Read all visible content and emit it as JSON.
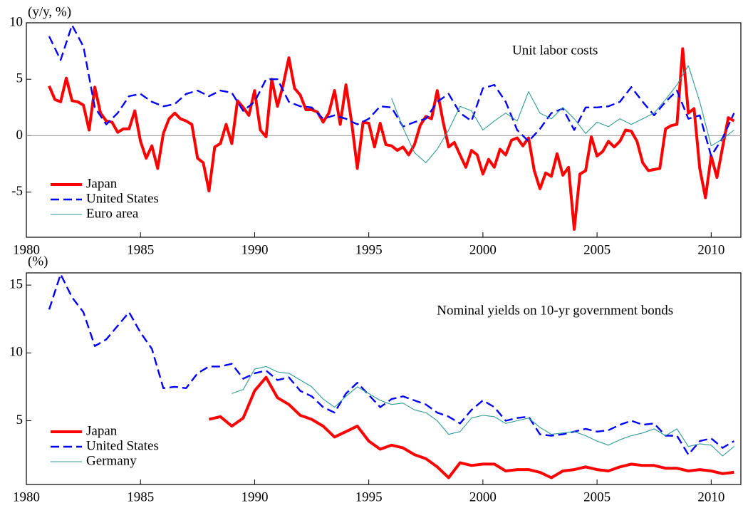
{
  "chart_data": [
    {
      "type": "line",
      "title": "Unit labor costs",
      "y_unit": "(y/y, %)",
      "xlim": [
        1980,
        2011.3
      ],
      "xticks": [
        1980,
        1985,
        1990,
        1995,
        2000,
        2005,
        2010
      ],
      "ylim": [
        -9,
        10
      ],
      "yticks": [
        -5,
        0,
        5,
        10
      ],
      "zero_line": true,
      "legend": "lower left",
      "series": [
        {
          "name": "Japan",
          "color": "#ff0000",
          "dashed": false,
          "x": [
            1981,
            1981.25,
            1981.5,
            1981.75,
            1982,
            1982.25,
            1982.5,
            1982.75,
            1983,
            1983.25,
            1983.5,
            1983.75,
            1984,
            1984.25,
            1984.5,
            1984.75,
            1985,
            1985.25,
            1985.5,
            1985.75,
            1986,
            1986.25,
            1986.5,
            1986.75,
            1987,
            1987.25,
            1987.5,
            1987.75,
            1988,
            1988.25,
            1988.5,
            1988.75,
            1989,
            1989.25,
            1989.5,
            1989.75,
            1990,
            1990.25,
            1990.5,
            1990.75,
            1991,
            1991.25,
            1991.5,
            1991.75,
            1992,
            1992.25,
            1992.5,
            1992.75,
            1993,
            1993.25,
            1993.5,
            1993.75,
            1994,
            1994.25,
            1994.5,
            1994.75,
            1995,
            1995.25,
            1995.5,
            1995.75,
            1996,
            1996.25,
            1996.5,
            1996.75,
            1997,
            1997.25,
            1997.5,
            1997.75,
            1998,
            1998.25,
            1998.5,
            1998.75,
            1999,
            1999.25,
            1999.5,
            1999.75,
            2000,
            2000.25,
            2000.5,
            2000.75,
            2001,
            2001.25,
            2001.5,
            2001.75,
            2002,
            2002.25,
            2002.5,
            2002.75,
            2003,
            2003.25,
            2003.5,
            2003.75,
            2004,
            2004.25,
            2004.5,
            2004.75,
            2005,
            2005.25,
            2005.5,
            2005.75,
            2006,
            2006.25,
            2006.5,
            2006.75,
            2007,
            2007.25,
            2007.5,
            2007.75,
            2008,
            2008.25,
            2008.5,
            2008.75,
            2009,
            2009.25,
            2009.5,
            2009.75,
            2010,
            2010.25,
            2010.5,
            2010.75,
            2011
          ],
          "values": [
            4.4,
            3.2,
            3.0,
            5.1,
            3.1,
            3.0,
            2.7,
            0.5,
            4.3,
            2.0,
            1.3,
            1.2,
            0.3,
            0.6,
            0.6,
            2.2,
            -0.5,
            -2.0,
            -0.9,
            -2.9,
            0.2,
            1.5,
            2.0,
            1.5,
            1.3,
            1.0,
            -2.0,
            -2.4,
            -4.9,
            -1.0,
            -0.7,
            1.0,
            -0.7,
            3.1,
            2.5,
            1.8,
            4.0,
            0.5,
            -0.1,
            5.0,
            2.6,
            4.5,
            6.9,
            4.2,
            3.6,
            2.3,
            2.3,
            2.1,
            1.2,
            2.0,
            4.0,
            1.0,
            4.5,
            1.2,
            -2.9,
            1.2,
            1.1,
            -1.0,
            1.1,
            -0.8,
            -0.9,
            -1.3,
            -1.0,
            -1.7,
            -0.8,
            0.9,
            1.7,
            1.5,
            4.0,
            1.3,
            -1.0,
            -0.6,
            -1.7,
            -2.8,
            -1.3,
            -1.7,
            -3.4,
            -2.1,
            -2.8,
            -1.2,
            -1.7,
            -0.4,
            -0.2,
            -0.9,
            -0.2,
            -3.1,
            -4.7,
            -3.3,
            -3.6,
            -1.6,
            -3.5,
            -2.8,
            -8.3,
            -3.4,
            -3.1,
            -0.1,
            -1.8,
            -1.4,
            -0.5,
            -1.0,
            -0.5,
            0.5,
            0.4,
            -0.5,
            -2.4,
            -3.1,
            -3.0,
            -2.9,
            0.6,
            0.9,
            1.0,
            7.7,
            2.0,
            2.4,
            -2.9,
            -5.5,
            -1.8,
            -3.7,
            -1.0,
            1.6,
            1.3
          ]
        },
        {
          "name": "United States",
          "color": "#0000ff",
          "dashed": true,
          "x": [
            1981,
            1981.5,
            1982,
            1982.5,
            1983,
            1983.5,
            1984,
            1984.5,
            1985,
            1985.5,
            1986,
            1986.5,
            1987,
            1987.5,
            1988,
            1988.5,
            1989,
            1989.5,
            1990,
            1990.5,
            1991,
            1991.5,
            1992,
            1992.5,
            1993,
            1993.5,
            1994,
            1994.5,
            1995,
            1995.5,
            1996,
            1996.5,
            1997,
            1997.5,
            1998,
            1998.5,
            1999,
            1999.5,
            2000,
            2000.5,
            2001,
            2001.5,
            2002,
            2002.5,
            2003,
            2003.5,
            2004,
            2004.5,
            2005,
            2005.5,
            2006,
            2006.5,
            2007,
            2007.5,
            2008,
            2008.5,
            2009,
            2009.5,
            2010,
            2010.5,
            2011
          ],
          "values": [
            8.8,
            6.7,
            9.8,
            7.9,
            2.5,
            1.0,
            2.0,
            3.5,
            3.7,
            3.0,
            2.6,
            2.8,
            3.7,
            4.0,
            3.5,
            4.0,
            3.8,
            2.2,
            3.0,
            5.0,
            5.0,
            3.0,
            2.6,
            2.5,
            1.5,
            1.8,
            1.5,
            1.0,
            1.5,
            2.6,
            2.5,
            0.8,
            1.2,
            1.5,
            3.0,
            3.7,
            2.0,
            1.3,
            4.2,
            4.5,
            3.0,
            0.5,
            -0.5,
            0.6,
            2.0,
            2.4,
            0.5,
            2.5,
            2.5,
            2.6,
            3.0,
            4.3,
            3.0,
            1.8,
            3.0,
            4.0,
            1.5,
            1.8,
            -1.8,
            -0.2,
            2.0
          ]
        },
        {
          "name": "Euro area",
          "color": "#2f9a96",
          "dashed": false,
          "x": [
            1996,
            1996.5,
            1997,
            1997.5,
            1998,
            1998.5,
            1999,
            1999.5,
            2000,
            2000.5,
            2001,
            2001.5,
            2002,
            2002.5,
            2003,
            2003.5,
            2004,
            2004.5,
            2005,
            2005.5,
            2006,
            2006.5,
            2007,
            2007.5,
            2008,
            2008.5,
            2009,
            2009.5,
            2010,
            2010.5,
            2011
          ],
          "values": [
            3.3,
            0.7,
            -1.5,
            -2.4,
            -1.2,
            0.5,
            2.6,
            2.2,
            0.5,
            1.3,
            2.0,
            1.3,
            3.9,
            2.0,
            1.5,
            2.5,
            1.5,
            0.2,
            1.2,
            0.8,
            1.5,
            1.0,
            1.5,
            2.0,
            3.2,
            4.5,
            6.2,
            3.0,
            -0.9,
            -0.3,
            0.5
          ]
        }
      ]
    },
    {
      "type": "line",
      "title": "Nominal yields on 10-yr government bonds",
      "y_unit": "(%)",
      "xlim": [
        1980,
        2011.3
      ],
      "xticks": [
        1980,
        1985,
        1990,
        1995,
        2000,
        2005,
        2010
      ],
      "ylim": [
        0.3,
        15.9
      ],
      "yticks": [
        5,
        10,
        15
      ],
      "zero_line": false,
      "legend": "lower left",
      "series": [
        {
          "name": "Japan",
          "color": "#ff0000",
          "dashed": false,
          "x": [
            1988,
            1988.5,
            1989,
            1989.5,
            1990,
            1990.5,
            1991,
            1991.5,
            1992,
            1992.5,
            1993,
            1993.5,
            1994,
            1994.5,
            1995,
            1995.5,
            1996,
            1996.5,
            1997,
            1997.5,
            1998,
            1998.5,
            1999,
            1999.5,
            2000,
            2000.5,
            2001,
            2001.5,
            2002,
            2002.5,
            2003,
            2003.5,
            2004,
            2004.5,
            2005,
            2005.5,
            2006,
            2006.5,
            2007,
            2007.5,
            2008,
            2008.5,
            2009,
            2009.5,
            2010,
            2010.5,
            2011
          ],
          "values": [
            5.1,
            5.3,
            4.6,
            5.2,
            7.2,
            8.2,
            6.7,
            6.2,
            5.4,
            5.1,
            4.6,
            3.8,
            4.2,
            4.6,
            3.5,
            2.9,
            3.2,
            3.0,
            2.5,
            2.2,
            1.6,
            0.8,
            1.9,
            1.7,
            1.8,
            1.8,
            1.3,
            1.4,
            1.4,
            1.2,
            0.8,
            1.3,
            1.4,
            1.6,
            1.4,
            1.3,
            1.6,
            1.8,
            1.7,
            1.7,
            1.5,
            1.5,
            1.3,
            1.4,
            1.3,
            1.1,
            1.2
          ]
        },
        {
          "name": "United States",
          "color": "#0000ff",
          "dashed": true,
          "x": [
            1981,
            1981.5,
            1982,
            1982.5,
            1983,
            1983.5,
            1984,
            1984.5,
            1985,
            1985.5,
            1986,
            1986.5,
            1987,
            1987.5,
            1988,
            1988.5,
            1989,
            1989.5,
            1990,
            1990.5,
            1991,
            1991.5,
            1992,
            1992.5,
            1993,
            1993.5,
            1994,
            1994.5,
            1995,
            1995.5,
            1996,
            1996.5,
            1997,
            1997.5,
            1998,
            1998.5,
            1999,
            1999.5,
            2000,
            2000.5,
            2001,
            2001.5,
            2002,
            2002.5,
            2003,
            2003.5,
            2004,
            2004.5,
            2005,
            2005.5,
            2006,
            2006.5,
            2007,
            2007.5,
            2008,
            2008.5,
            2009,
            2009.5,
            2010,
            2010.5,
            2011
          ],
          "values": [
            13.2,
            15.8,
            14.1,
            13.0,
            10.5,
            11.0,
            12.0,
            13.0,
            11.5,
            10.3,
            7.4,
            7.5,
            7.4,
            8.5,
            9.0,
            9.0,
            9.2,
            8.1,
            8.5,
            8.7,
            8.0,
            8.2,
            7.2,
            6.8,
            6.0,
            5.6,
            7.0,
            7.8,
            6.9,
            6.0,
            6.6,
            6.8,
            6.5,
            6.2,
            5.6,
            5.3,
            4.8,
            5.8,
            6.5,
            6.0,
            5.0,
            5.2,
            5.3,
            4.0,
            3.9,
            4.0,
            4.2,
            4.4,
            4.2,
            4.3,
            4.7,
            5.0,
            4.7,
            4.8,
            3.9,
            3.9,
            2.5,
            3.5,
            3.7,
            3.0,
            3.5
          ]
        },
        {
          "name": "Germany",
          "color": "#2f9a96",
          "dashed": false,
          "x": [
            1989,
            1989.5,
            1990,
            1990.5,
            1991,
            1991.5,
            1992,
            1992.5,
            1993,
            1993.5,
            1994,
            1994.5,
            1995,
            1995.5,
            1996,
            1996.5,
            1997,
            1997.5,
            1998,
            1998.5,
            1999,
            1999.5,
            2000,
            2000.5,
            2001,
            2001.5,
            2002,
            2002.5,
            2003,
            2003.5,
            2004,
            2004.5,
            2005,
            2005.5,
            2006,
            2006.5,
            2007,
            2007.5,
            2008,
            2008.5,
            2009,
            2009.5,
            2010,
            2010.5,
            2011
          ],
          "values": [
            7.0,
            7.3,
            8.8,
            9.0,
            8.6,
            8.5,
            8.0,
            7.5,
            6.6,
            6.0,
            6.8,
            7.5,
            7.0,
            6.5,
            6.2,
            6.3,
            5.8,
            5.6,
            5.0,
            4.0,
            4.2,
            5.2,
            5.4,
            5.3,
            4.8,
            5.0,
            5.2,
            4.5,
            4.0,
            4.1,
            4.2,
            3.9,
            3.5,
            3.2,
            3.6,
            3.9,
            4.1,
            4.4,
            3.9,
            4.4,
            3.1,
            3.3,
            3.2,
            2.4,
            3.1
          ]
        }
      ]
    }
  ]
}
